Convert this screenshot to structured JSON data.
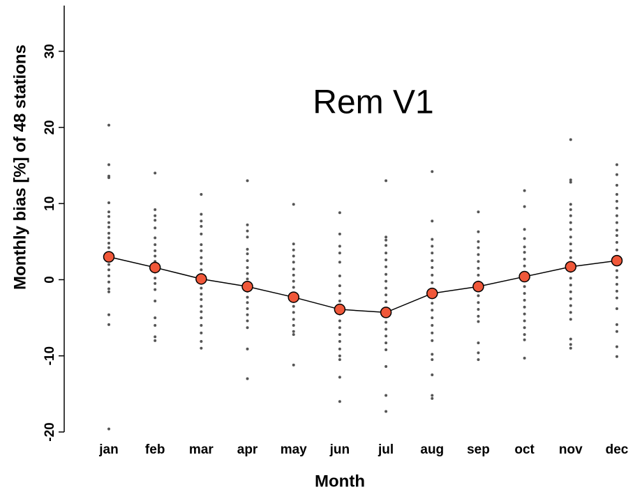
{
  "chart_data": {
    "type": "line",
    "title": "Rem V1",
    "x_label": "Month",
    "y_label": "Monthly bias [%] of 48 stations",
    "categories": [
      "jan",
      "feb",
      "mar",
      "apr",
      "may",
      "jun",
      "jul",
      "aug",
      "sep",
      "oct",
      "nov",
      "dec"
    ],
    "series": [
      {
        "color": "#f0583a",
        "values": [
          3.0,
          1.6,
          0.1,
          -0.9,
          -2.3,
          -3.9,
          -4.3,
          -1.8,
          -0.9,
          0.4,
          1.7,
          2.5
        ]
      }
    ],
    "stations": {
      "color": "#555555",
      "values": [
        [
          20.3,
          15.1,
          13.6,
          13.4,
          10.1,
          8.9,
          8.3,
          7.5,
          6.9,
          6.1,
          5.5,
          4.8,
          4.2,
          3.5,
          2.8,
          2.0,
          1.3,
          0.5,
          -0.3,
          -1.2,
          -1.6,
          -4.6,
          -5.9,
          -19.6
        ],
        [
          14.0,
          9.2,
          8.4,
          7.8,
          6.8,
          5.5,
          4.6,
          3.8,
          3.1,
          2.4,
          1.8,
          1.0,
          0.2,
          -0.5,
          -1.3,
          -2.8,
          -5.0,
          -6.0,
          -7.5,
          -8.0
        ],
        [
          11.2,
          8.6,
          7.7,
          7.0,
          6.0,
          4.6,
          3.8,
          2.9,
          2.1,
          1.3,
          0.6,
          -0.3,
          -1.1,
          -1.9,
          -2.6,
          -3.5,
          -4.2,
          -5.0,
          -6.0,
          -7.0,
          -8.1,
          -9.0
        ],
        [
          13.0,
          7.2,
          6.4,
          5.6,
          4.0,
          3.4,
          2.5,
          1.6,
          0.8,
          0.1,
          -0.7,
          -1.5,
          -2.3,
          -3.0,
          -3.8,
          -4.6,
          -5.4,
          -6.3,
          -9.1,
          -13.0
        ],
        [
          9.9,
          4.7,
          3.9,
          3.1,
          2.3,
          1.4,
          0.6,
          -0.2,
          -1.0,
          -1.8,
          -2.6,
          -3.5,
          -4.3,
          -5.2,
          -6.0,
          -6.8,
          -7.2,
          -11.2
        ],
        [
          8.8,
          6.0,
          4.4,
          3.5,
          2.3,
          0.5,
          -0.8,
          -1.8,
          -2.8,
          -3.6,
          -4.5,
          -5.4,
          -6.3,
          -7.2,
          -8.1,
          -9.1,
          -10.0,
          -10.5,
          -12.8,
          -16.0
        ],
        [
          13.0,
          5.6,
          5.2,
          4.5,
          3.5,
          2.6,
          1.7,
          0.7,
          -0.2,
          -1.1,
          -2.0,
          -2.9,
          -3.8,
          -4.7,
          -5.6,
          -6.5,
          -7.4,
          -8.3,
          -9.2,
          -11.4,
          -15.2,
          -17.3
        ],
        [
          14.2,
          7.7,
          5.3,
          4.4,
          3.5,
          2.5,
          1.6,
          0.6,
          -0.4,
          -1.3,
          -2.2,
          -3.1,
          -4.0,
          -5.0,
          -6.0,
          -7.0,
          -8.0,
          -9.8,
          -10.5,
          -12.5,
          -15.2,
          -15.6
        ],
        [
          8.9,
          6.3,
          5.0,
          4.2,
          3.3,
          2.4,
          1.5,
          0.6,
          -0.3,
          -1.2,
          -2.1,
          -3.0,
          -3.9,
          -4.8,
          -5.5,
          -8.3,
          -9.6,
          -10.5
        ],
        [
          11.7,
          9.6,
          6.6,
          5.4,
          4.3,
          3.6,
          2.7,
          1.8,
          0.9,
          0.0,
          -0.9,
          -1.8,
          -2.7,
          -3.6,
          -4.5,
          -5.4,
          -6.3,
          -7.2,
          -7.9,
          -10.3
        ],
        [
          18.4,
          13.1,
          12.8,
          9.9,
          9.2,
          8.4,
          7.5,
          6.6,
          5.6,
          4.7,
          3.8,
          2.9,
          2.0,
          1.1,
          0.2,
          -0.7,
          -1.6,
          -2.5,
          -3.4,
          -4.3,
          -5.2,
          -7.8,
          -8.5,
          -9.0
        ],
        [
          15.1,
          13.8,
          12.4,
          11.2,
          10.3,
          9.4,
          8.4,
          7.5,
          6.5,
          5.8,
          4.9,
          3.9,
          3.0,
          2.1,
          1.2,
          0.3,
          -0.6,
          -1.5,
          -2.4,
          -3.8,
          -5.9,
          -6.8,
          -8.8,
          -10.1
        ]
      ]
    },
    "ylim": [
      -20,
      36
    ],
    "yticks": [
      -20,
      -10,
      0,
      10,
      20,
      30
    ],
    "grid": false
  }
}
